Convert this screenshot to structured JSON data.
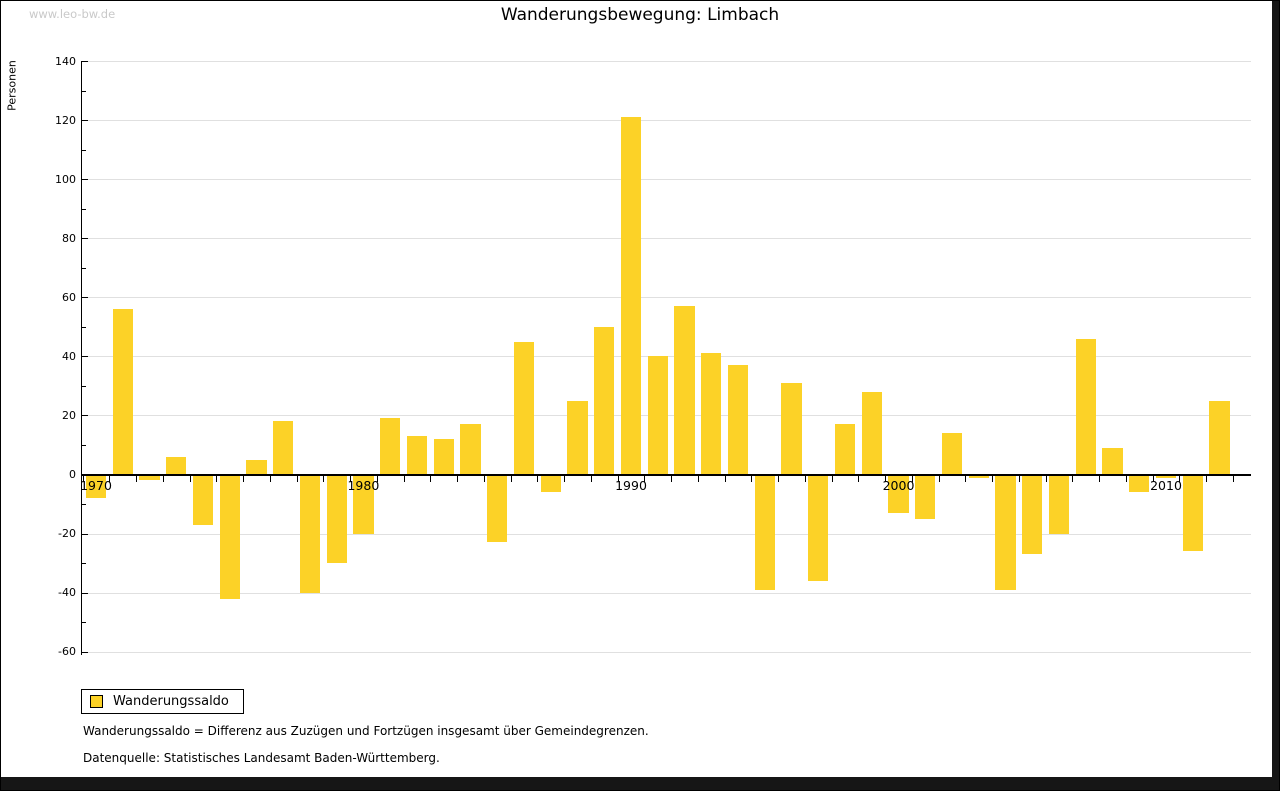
{
  "watermark": "www.leo-bw.de",
  "title": "Wanderungsbewegung: Limbach",
  "y_axis": {
    "label": "Personen",
    "min": -60,
    "max": 140,
    "major_step": 20,
    "minor_step": 10
  },
  "x_axis": {
    "decade_labels": [
      "1970",
      "1980",
      "1990",
      "2000",
      "2010"
    ]
  },
  "legend": {
    "label": "Wanderungssaldo"
  },
  "footnotes": [
    "Wanderungssaldo = Differenz aus Zuzügen und Fortzügen insgesamt über Gemeindegrenzen.",
    "Datenquelle: Statistisches Landesamt Baden-Württemberg."
  ],
  "colors": {
    "bar": "#fcd227",
    "grid": "#e0e0e0",
    "axis": "#000000",
    "watermark": "#c9c9c9"
  },
  "chart_data": {
    "type": "bar",
    "title": "Wanderungsbewegung: Limbach",
    "xlabel": "",
    "ylabel": "Personen",
    "ylim": [
      -60,
      140
    ],
    "grid": true,
    "legend_position": "bottom-left",
    "series_name": "Wanderungssaldo",
    "categories": [
      1970,
      1971,
      1972,
      1973,
      1974,
      1975,
      1976,
      1977,
      1978,
      1979,
      1980,
      1981,
      1982,
      1983,
      1984,
      1985,
      1986,
      1987,
      1988,
      1989,
      1990,
      1991,
      1992,
      1993,
      1994,
      1995,
      1996,
      1997,
      1998,
      1999,
      2000,
      2001,
      2002,
      2003,
      2004,
      2005,
      2006,
      2007,
      2008,
      2009,
      2010,
      2011,
      2012
    ],
    "values": [
      -8,
      56,
      -2,
      6,
      -17,
      -42,
      5,
      18,
      -40,
      -30,
      -20,
      19,
      13,
      12,
      17,
      -23,
      45,
      -6,
      25,
      50,
      121,
      40,
      57,
      41,
      37,
      -39,
      31,
      -36,
      17,
      28,
      -13,
      -15,
      14,
      -1,
      -39,
      -27,
      -20,
      46,
      9,
      -6,
      -1,
      -26,
      25
    ]
  }
}
